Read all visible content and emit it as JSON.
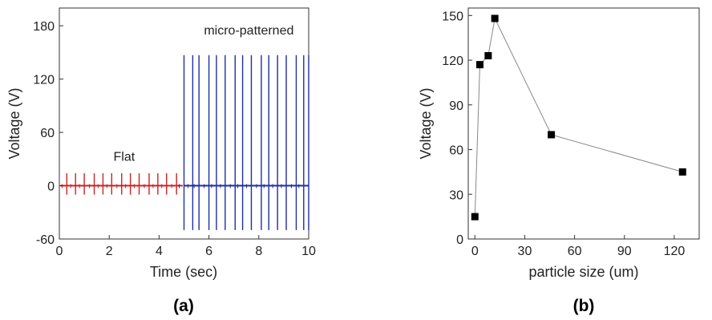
{
  "chart_data": [
    {
      "type": "line",
      "panel_label": "(a)",
      "xlabel": "Time (sec)",
      "ylabel": "Voltage (V)",
      "xlim": [
        0,
        10
      ],
      "ylim": [
        -60,
        200
      ],
      "xticks": [
        0,
        2,
        4,
        6,
        8,
        10
      ],
      "yticks": [
        -60,
        0,
        60,
        120,
        180
      ],
      "grid": false,
      "annotations": [
        {
          "text": "Flat",
          "x": 2.6,
          "y": 28
        },
        {
          "text": "micro-patterned",
          "x": 7.6,
          "y": 170
        }
      ],
      "series": [
        {
          "color": "#cc2222",
          "x_start": 0.05,
          "x_end": 4.95,
          "baseline": 0,
          "spike_times": [
            0.3,
            0.65,
            1.0,
            1.4,
            1.75,
            2.1,
            2.5,
            2.85,
            3.2,
            3.6,
            3.95,
            4.3,
            4.7
          ],
          "spike_max": 14,
          "spike_min": -10
        },
        {
          "color": "#1f2f9f",
          "x_start": 5.0,
          "x_end": 10.0,
          "baseline": 0,
          "spike_times": [
            5.0,
            5.35,
            5.6,
            6.0,
            6.3,
            6.65,
            7.05,
            7.35,
            7.7,
            8.1,
            8.4,
            8.75,
            9.1,
            9.5,
            9.8,
            10.0
          ],
          "spike_max": 147,
          "spike_min": -50
        }
      ]
    },
    {
      "type": "line",
      "panel_label": "(b)",
      "xlabel": "particle size (um)",
      "ylabel": "Voltage (V)",
      "xlim": [
        -4,
        135
      ],
      "ylim": [
        0,
        155
      ],
      "xticks": [
        0,
        30,
        60,
        90,
        120
      ],
      "yticks": [
        0,
        30,
        60,
        90,
        120,
        150
      ],
      "grid": false,
      "marker": "square",
      "color": "#000000",
      "line_color": "#888888",
      "x": [
        0,
        3,
        8,
        12,
        46,
        125
      ],
      "y": [
        15,
        117,
        123,
        148,
        70,
        45
      ]
    }
  ]
}
